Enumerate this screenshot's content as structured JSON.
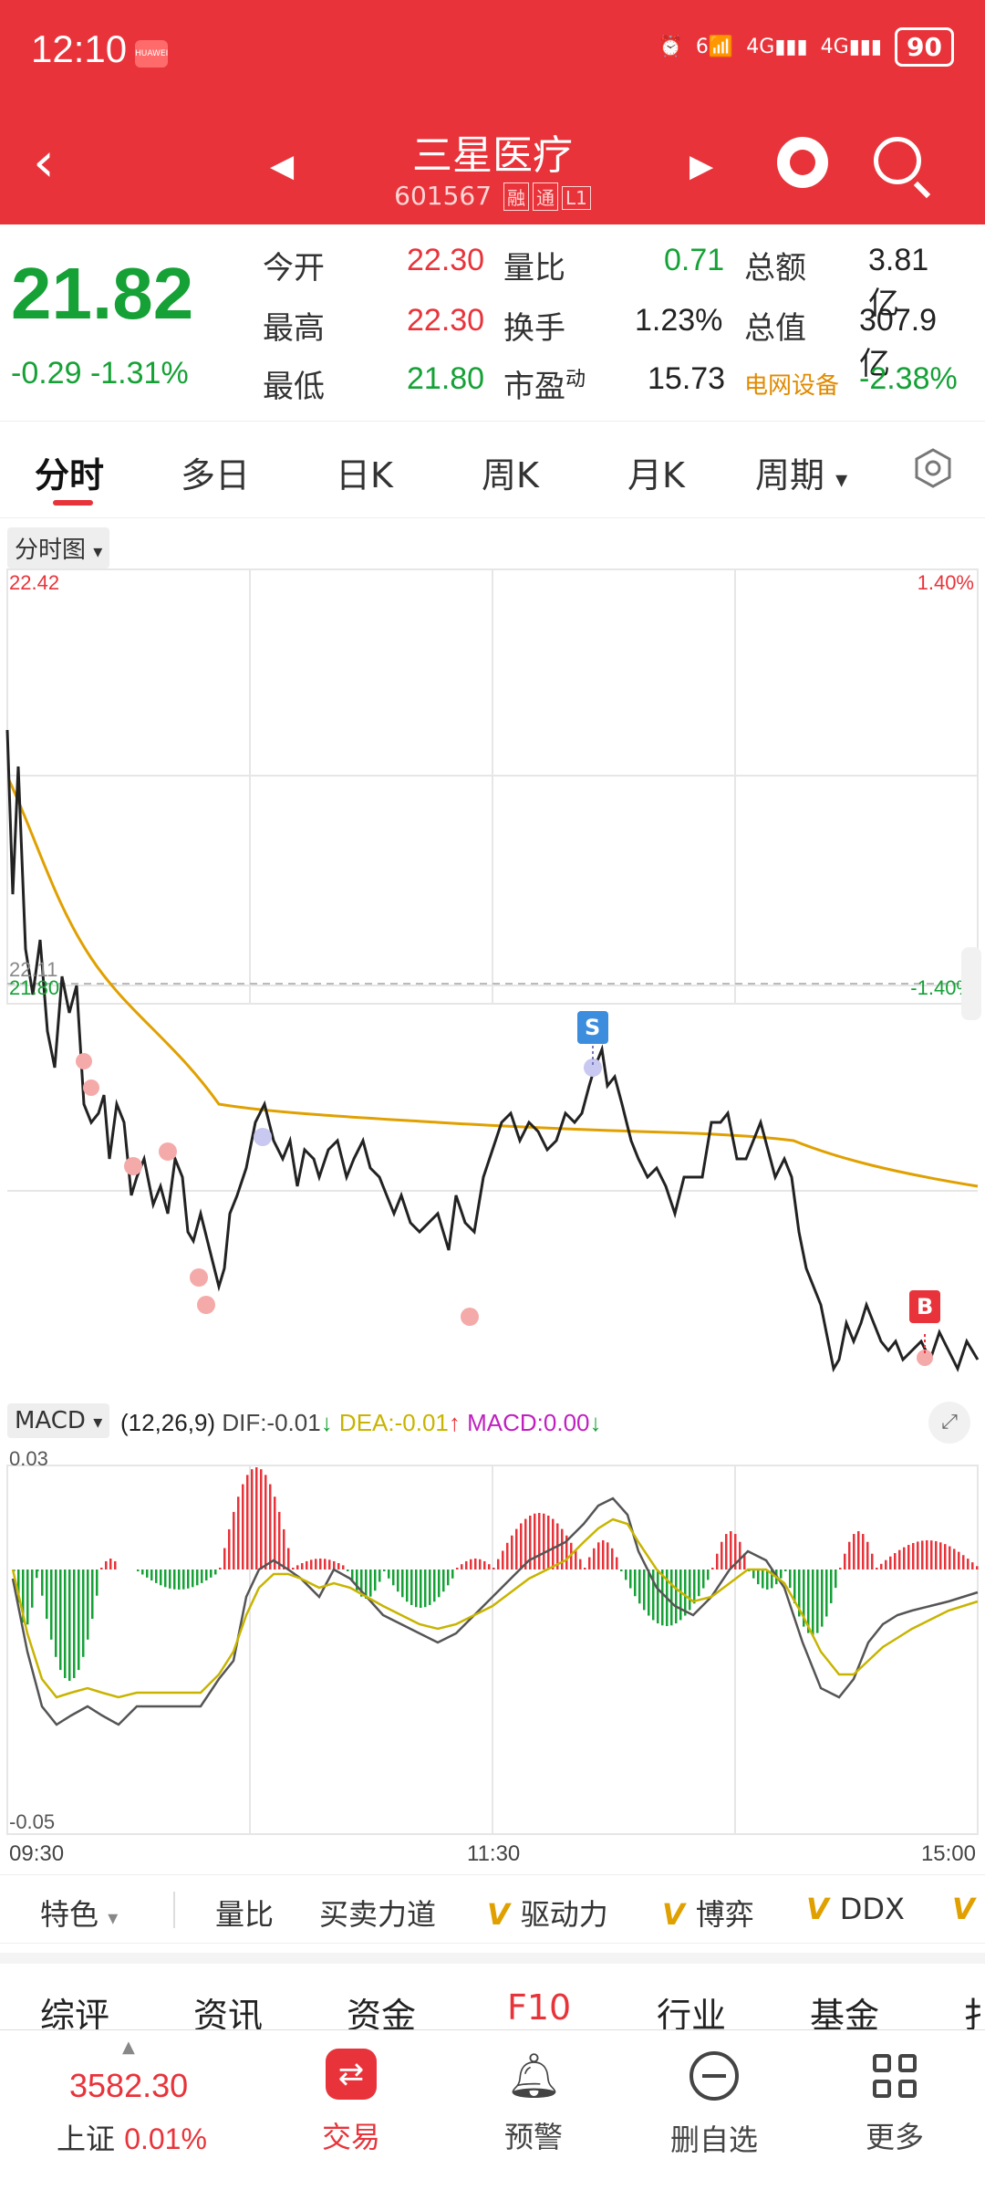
{
  "status": {
    "time": "12:10",
    "app_badge": "HUAWEI",
    "net1": "6",
    "net2": "4G",
    "net3": "4G",
    "battery": "90"
  },
  "header": {
    "title": "三星医疗",
    "code": "601567",
    "tags": [
      "融",
      "通",
      "L1"
    ]
  },
  "quote": {
    "price": "21.82",
    "change": "-0.29",
    "change_pct": "-1.31%",
    "fields": [
      {
        "label": "今开",
        "value": "22.30"
      },
      {
        "label": "最高",
        "value": "22.30"
      },
      {
        "label": "最低",
        "value": "21.80"
      },
      {
        "label": "量比",
        "value": "0.71"
      },
      {
        "label": "换手",
        "value": "1.23%"
      },
      {
        "label": "市盈",
        "sup": "动",
        "value": "15.73"
      },
      {
        "label": "总额",
        "value": "3.81亿"
      },
      {
        "label": "总值",
        "value": "307.9亿"
      },
      {
        "label": "电网设备",
        "value": "-2.38%"
      }
    ]
  },
  "tabs": [
    "分时",
    "多日",
    "日K",
    "周K",
    "月K",
    "周期"
  ],
  "chart": {
    "selector": "分时图",
    "price_high": "22.42",
    "price_prev": "22.11",
    "price_low": "21.80",
    "pct_high": "1.40%",
    "pct_low": "-1.40%",
    "markers": {
      "sell": "S",
      "buy": "B"
    },
    "macd_selector": "MACD",
    "macd_params": "(12,26,9)",
    "dif_label": "DIF:",
    "dif_value": "-0.01",
    "dea_label": "DEA:",
    "dea_value": "-0.01",
    "macd_label": "MACD:",
    "macd_value": "0.00",
    "macd_high": "0.03",
    "macd_low": "-0.05",
    "time_start": "09:30",
    "time_mid": "11:30",
    "time_end": "15:00"
  },
  "chart_data": {
    "type": "line",
    "x": [
      "09:30",
      "11:30",
      "15:00"
    ],
    "ylim": [
      21.8,
      22.42
    ],
    "series": [],
    "colors": {
      "price_line": "#222222",
      "avg_line": "#e0a000",
      "up_bar": "#e8333a",
      "down_bar": "#15a136",
      "dif": "#555555",
      "dea": "#c8b400"
    }
  },
  "features": [
    "特色",
    "量比",
    "买卖力道",
    "驱动力",
    "博弈",
    "DDX"
  ],
  "sections": [
    "综评",
    "资讯",
    "资金",
    "F10",
    "行业",
    "基金",
    "扌"
  ],
  "bottom_nav": {
    "index_value": "3582.30",
    "index_name": "上证",
    "index_pct": "0.01%",
    "items": [
      "交易",
      "预警",
      "删自选",
      "更多"
    ]
  }
}
